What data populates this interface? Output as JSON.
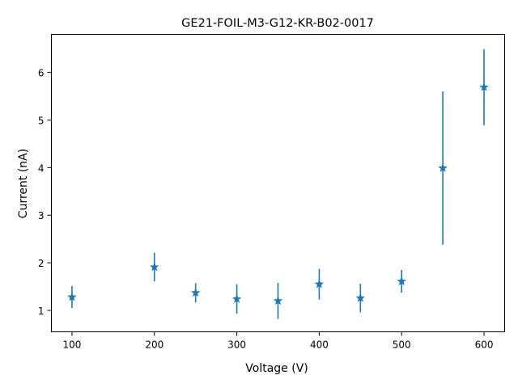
{
  "chart_data": {
    "type": "scatter",
    "title": "GE21-FOIL-M3-G12-KR-B02-0017",
    "xlabel": "Voltage (V)",
    "ylabel": "Current (nA)",
    "xlim": [
      75,
      625
    ],
    "ylim": [
      0.55,
      6.8
    ],
    "xticks": [
      100,
      200,
      300,
      400,
      500,
      600
    ],
    "yticks": [
      1,
      2,
      3,
      4,
      5,
      6
    ],
    "grid": false,
    "marker": "star",
    "color": "#1f77b4",
    "series": [
      {
        "x": [
          100,
          200,
          250,
          300,
          350,
          400,
          450,
          500,
          550,
          600
        ],
        "y": [
          1.28,
          1.91,
          1.37,
          1.24,
          1.2,
          1.55,
          1.26,
          1.61,
          3.99,
          5.69
        ],
        "yerr": [
          0.23,
          0.3,
          0.2,
          0.31,
          0.38,
          0.32,
          0.3,
          0.24,
          1.61,
          0.8
        ]
      }
    ]
  }
}
